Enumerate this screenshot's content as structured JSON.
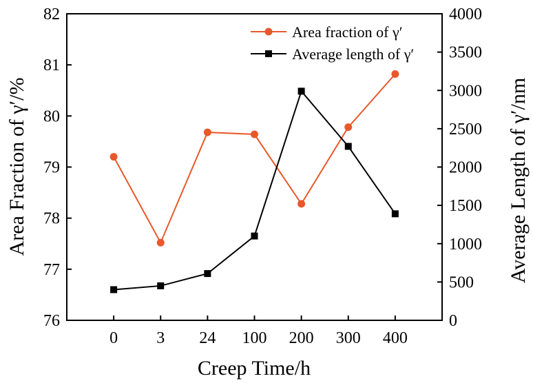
{
  "chart_data": {
    "type": "line",
    "categories": [
      "0",
      "3",
      "24",
      "100",
      "200",
      "300",
      "400"
    ],
    "xlabel": "Creep Time/h",
    "ylabel_left": "Area Fraction of γ′/%",
    "ylabel_right": "Average Length of γ′/nm",
    "ylim_left": [
      76,
      82
    ],
    "ylim_right": [
      0,
      4000
    ],
    "yticks_left": [
      "76",
      "77",
      "78",
      "79",
      "80",
      "81",
      "82"
    ],
    "yticks_right": [
      "0",
      "500",
      "1000",
      "1500",
      "2000",
      "2500",
      "3000",
      "3500",
      "4000"
    ],
    "legend_position": "top-right",
    "series": [
      {
        "name": "Area fraction of γ′",
        "axis": "left",
        "marker": "circle",
        "color": "#e8582a",
        "values": [
          79.2,
          77.52,
          79.68,
          79.64,
          78.28,
          79.78,
          80.82
        ]
      },
      {
        "name": "Average length of γ′",
        "axis": "right",
        "marker": "square",
        "color": "#000000",
        "values": [
          400,
          450,
          610,
          1100,
          2990,
          2270,
          1390
        ]
      }
    ]
  }
}
